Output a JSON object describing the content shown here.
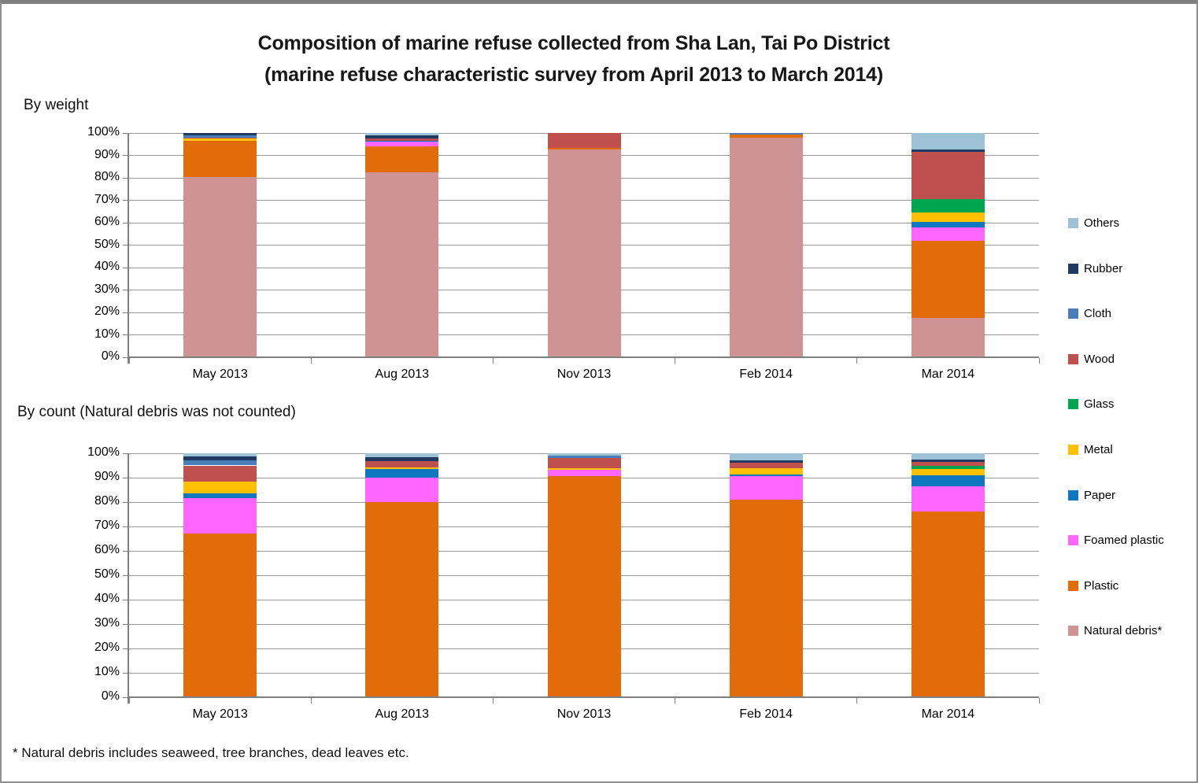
{
  "title": {
    "line1": "Composition of marine refuse collected from Sha Lan, Tai Po District",
    "line2": "(marine refuse characteristic survey from April 2013 to March 2014)"
  },
  "footnote": "* Natural debris includes seaweed, tree branches, dead leaves etc.",
  "legend": {
    "position": "right",
    "items": [
      {
        "label": "Others",
        "color": "#9EC3D6"
      },
      {
        "label": "Rubber",
        "color": "#1F3A63"
      },
      {
        "label": "Cloth",
        "color": "#4A7EBB"
      },
      {
        "label": "Wood",
        "color": "#C0504D"
      },
      {
        "label": "Glass",
        "color": "#00A550"
      },
      {
        "label": "Metal",
        "color": "#FFC000"
      },
      {
        "label": "Paper",
        "color": "#0F77C0"
      },
      {
        "label": "Foamed plastic",
        "color": "#FF66FF"
      },
      {
        "label": "Plastic",
        "color": "#E36C0A"
      },
      {
        "label": "Natural debris*",
        "color": "#D09394"
      }
    ]
  },
  "chart_data": [
    {
      "type": "bar",
      "stacked": true,
      "units": "percent",
      "title": "By weight",
      "categories": [
        "May 2013",
        "Aug 2013",
        "Nov 2013",
        "Feb 2014",
        "Mar 2014"
      ],
      "ylim": [
        0,
        100
      ],
      "grid": true,
      "yticks": [
        "0%",
        "10%",
        "20%",
        "30%",
        "40%",
        "50%",
        "60%",
        "70%",
        "80%",
        "90%",
        "100%"
      ],
      "series": [
        {
          "name": "Natural debris*",
          "color": "#D09394",
          "values": [
            80.5,
            82.5,
            92.5,
            98,
            17.5
          ]
        },
        {
          "name": "Plastic",
          "color": "#E36C0A",
          "values": [
            16,
            11.5,
            1,
            1.25,
            34.5
          ]
        },
        {
          "name": "Foamed plastic",
          "color": "#FF66FF",
          "values": [
            0,
            2,
            0,
            0,
            6
          ]
        },
        {
          "name": "Paper",
          "color": "#0F77C0",
          "values": [
            0,
            0.5,
            0,
            0,
            2.5
          ]
        },
        {
          "name": "Metal",
          "color": "#FFC000",
          "values": [
            1,
            0,
            0,
            0,
            4
          ]
        },
        {
          "name": "Glass",
          "color": "#00A550",
          "values": [
            0,
            0,
            0,
            0,
            6
          ]
        },
        {
          "name": "Wood",
          "color": "#C0504D",
          "values": [
            0.5,
            1,
            6.5,
            0,
            21
          ]
        },
        {
          "name": "Cloth",
          "color": "#4A7EBB",
          "values": [
            1,
            0,
            0,
            0.75,
            0
          ]
        },
        {
          "name": "Rubber",
          "color": "#1F3A63",
          "values": [
            1,
            1.5,
            0,
            0,
            1
          ]
        },
        {
          "name": "Others",
          "color": "#9EC3D6",
          "values": [
            0,
            1,
            0,
            0,
            7.5
          ]
        }
      ]
    },
    {
      "type": "bar",
      "stacked": true,
      "units": "percent",
      "title": "By count (Natural debris was not counted)",
      "categories": [
        "May 2013",
        "Aug 2013",
        "Nov 2013",
        "Feb 2014",
        "Mar 2014"
      ],
      "ylim": [
        0,
        100
      ],
      "grid": true,
      "yticks": [
        "0%",
        "10%",
        "20%",
        "30%",
        "40%",
        "50%",
        "60%",
        "70%",
        "80%",
        "90%",
        "100%"
      ],
      "series": [
        {
          "name": "Natural debris*",
          "color": "#D09394",
          "values": [
            0,
            0,
            0,
            0,
            0
          ]
        },
        {
          "name": "Plastic",
          "color": "#E36C0A",
          "values": [
            67,
            80,
            90.5,
            81,
            76
          ]
        },
        {
          "name": "Foamed plastic",
          "color": "#FF66FF",
          "values": [
            14.5,
            10,
            2.8,
            9.5,
            10.3
          ]
        },
        {
          "name": "Paper",
          "color": "#0F77C0",
          "values": [
            2,
            3.5,
            0,
            0.8,
            4.7
          ]
        },
        {
          "name": "Metal",
          "color": "#FFC000",
          "values": [
            5,
            0.8,
            0.7,
            2.7,
            2.7
          ]
        },
        {
          "name": "Glass",
          "color": "#00A550",
          "values": [
            0,
            0,
            0,
            0,
            1
          ]
        },
        {
          "name": "Wood",
          "color": "#C0504D",
          "values": [
            6.5,
            2.5,
            4,
            2,
            1.8
          ]
        },
        {
          "name": "Cloth",
          "color": "#4A7EBB",
          "values": [
            2,
            0,
            1,
            0,
            0
          ]
        },
        {
          "name": "Rubber",
          "color": "#1F3A63",
          "values": [
            1.7,
            1.7,
            0,
            1,
            1
          ]
        },
        {
          "name": "Others",
          "color": "#9EC3D6",
          "values": [
            1.3,
            1.5,
            1,
            3,
            2.5
          ]
        }
      ]
    }
  ]
}
